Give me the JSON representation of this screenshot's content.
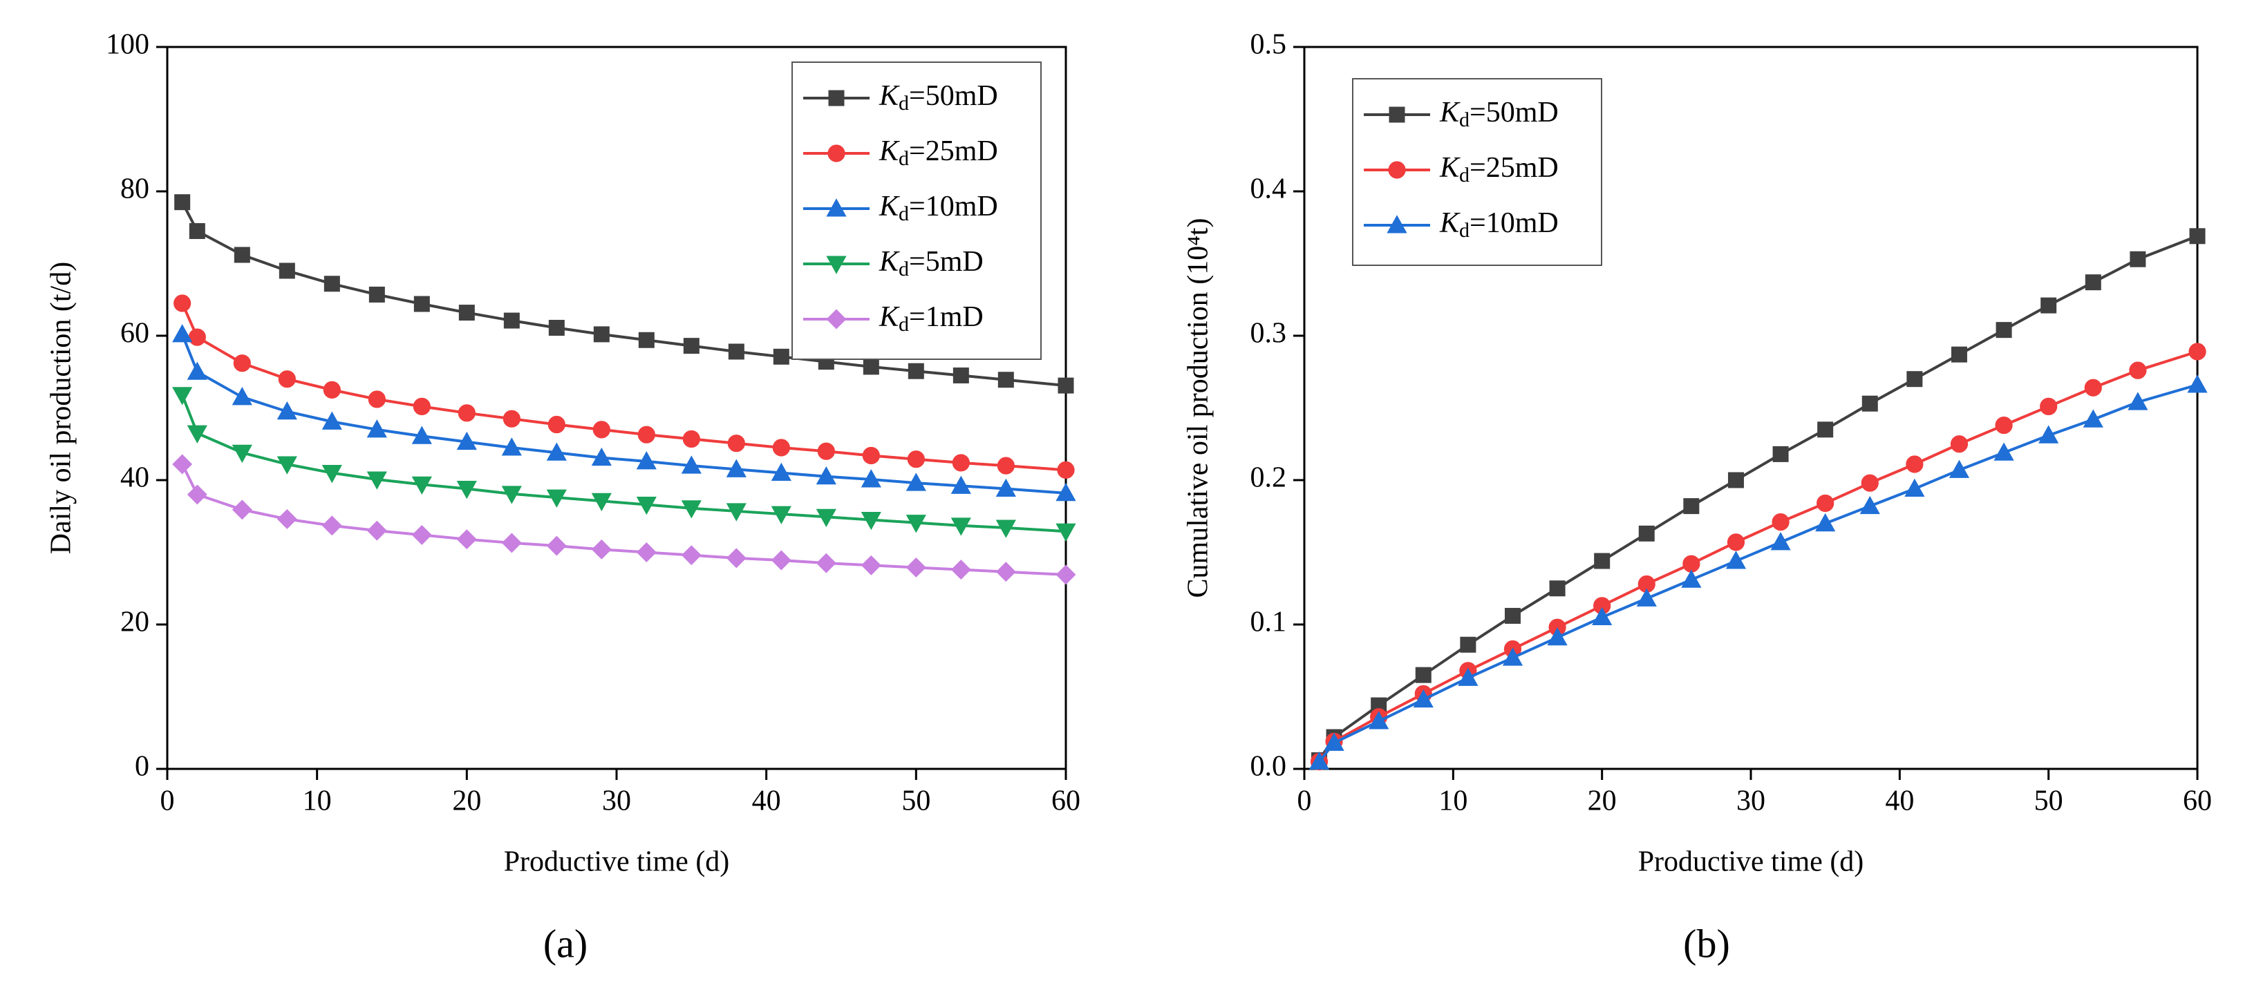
{
  "chart_data": [
    {
      "type": "line",
      "label": "(a)",
      "x_label": "Productive time (d)",
      "y_label": "Daily oil production (t/d)",
      "x": [
        1,
        2,
        5,
        8,
        11,
        14,
        17,
        20,
        23,
        26,
        29,
        32,
        35,
        38,
        41,
        44,
        47,
        50,
        53,
        56,
        60
      ],
      "xlim": [
        0,
        60
      ],
      "xticks": [
        0,
        10,
        20,
        30,
        40,
        50,
        60
      ],
      "ylim": [
        0,
        100
      ],
      "yticks": [
        0,
        20,
        40,
        60,
        80,
        100
      ],
      "legend": "upper right",
      "series": [
        {
          "name": "Kd=50mD",
          "color": "#404040",
          "marker": "square",
          "values": [
            78.5,
            74.5,
            71.2,
            69,
            67.2,
            65.7,
            64.4,
            63.2,
            62.1,
            61.1,
            60.2,
            59.4,
            58.6,
            57.8,
            57.1,
            56.4,
            55.7,
            55.1,
            54.5,
            53.9,
            53.1
          ]
        },
        {
          "name": "Kd=25mD",
          "color": "#f03c3c",
          "marker": "circle",
          "values": [
            64.5,
            59.8,
            56.2,
            54,
            52.5,
            51.2,
            50.2,
            49.3,
            48.5,
            47.7,
            47,
            46.3,
            45.7,
            45.1,
            44.5,
            44,
            43.4,
            42.9,
            42.4,
            42,
            41.4
          ]
        },
        {
          "name": "Kd=10mD",
          "color": "#1f6fd6",
          "marker": "triangle-up",
          "values": [
            60.2,
            55,
            51.5,
            49.5,
            48.1,
            47,
            46.1,
            45.3,
            44.5,
            43.8,
            43.1,
            42.6,
            42,
            41.5,
            41,
            40.5,
            40.1,
            39.6,
            39.2,
            38.8,
            38.2
          ]
        },
        {
          "name": "Kd=5mD",
          "color": "#1aa35a",
          "marker": "triangle-down",
          "values": [
            51.8,
            46.5,
            43.8,
            42.2,
            41,
            40.1,
            39.4,
            38.8,
            38.1,
            37.6,
            37.1,
            36.6,
            36.1,
            35.7,
            35.3,
            34.9,
            34.5,
            34.1,
            33.7,
            33.4,
            32.9
          ]
        },
        {
          "name": "Kd=1mD",
          "color": "#c87fe0",
          "marker": "diamond",
          "values": [
            42.2,
            38,
            35.9,
            34.6,
            33.7,
            33,
            32.4,
            31.8,
            31.3,
            30.9,
            30.4,
            30,
            29.6,
            29.2,
            28.9,
            28.5,
            28.2,
            27.9,
            27.6,
            27.3,
            26.9
          ]
        }
      ]
    },
    {
      "type": "line",
      "label": "(b)",
      "x_label": "Productive time (d)",
      "y_label": "Cumulative oil production (10⁴t)",
      "x": [
        1,
        2,
        5,
        8,
        11,
        14,
        17,
        20,
        23,
        26,
        29,
        32,
        35,
        38,
        41,
        44,
        47,
        50,
        53,
        56,
        60
      ],
      "xlim": [
        0,
        60
      ],
      "xticks": [
        0,
        10,
        20,
        30,
        40,
        50,
        60
      ],
      "ylim": [
        0,
        0.5
      ],
      "yticks": [
        {
          "value": 0,
          "label": "0.0"
        },
        0.1,
        0.2,
        0.3,
        0.4,
        0.5
      ],
      "legend": "upper left",
      "series": [
        {
          "name": "Kd=50mD",
          "color": "#404040",
          "marker": "square",
          "values": [
            0.006,
            0.022,
            0.044,
            0.065,
            0.086,
            0.106,
            0.125,
            0.144,
            0.163,
            0.182,
            0.2,
            0.218,
            0.235,
            0.253,
            0.27,
            0.287,
            0.304,
            0.321,
            0.337,
            0.353,
            0.369
          ]
        },
        {
          "name": "Kd=25mD",
          "color": "#f03c3c",
          "marker": "circle",
          "values": [
            0.005,
            0.019,
            0.036,
            0.052,
            0.068,
            0.083,
            0.098,
            0.113,
            0.128,
            0.142,
            0.157,
            0.171,
            0.184,
            0.198,
            0.211,
            0.225,
            0.238,
            0.251,
            0.264,
            0.276,
            0.289
          ]
        },
        {
          "name": "Kd=10mD",
          "color": "#1f6fd6",
          "marker": "triangle-up",
          "values": [
            0.005,
            0.018,
            0.033,
            0.048,
            0.063,
            0.077,
            0.091,
            0.105,
            0.118,
            0.131,
            0.144,
            0.157,
            0.17,
            0.182,
            0.194,
            0.207,
            0.219,
            0.231,
            0.242,
            0.254,
            0.266
          ]
        }
      ]
    }
  ]
}
